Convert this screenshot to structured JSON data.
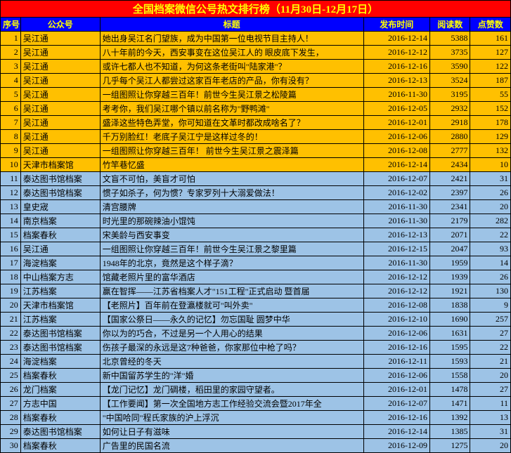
{
  "title": "全国档案微信公号热文排行榜（11月30日-12月17日）",
  "columns": [
    "序号",
    "公众号",
    "标题",
    "发布时间",
    "阅读数",
    "点赞数"
  ],
  "colors": {
    "titleBg": "#ff0000",
    "titleFg": "#ffff00",
    "headerBg": "#0000ff",
    "headerFg": "#ffff00",
    "orange": "#ffc000",
    "blue": "#9dc3e6",
    "border": "#000000"
  },
  "rows": [
    {
      "n": 1,
      "acct": "吴江通",
      "title": "她出身吴江名门望族，成为中国第一位电视节目主持人！",
      "date": "2016-12-14",
      "read": 5388,
      "like": 161,
      "bg": "orange"
    },
    {
      "n": 2,
      "acct": "吴江通",
      "title": "八十年前的今天，西安事变在这位吴江人的  眼皮底下发生，",
      "date": "2016-12-12",
      "read": 3735,
      "like": 127,
      "bg": "orange"
    },
    {
      "n": 3,
      "acct": "吴江通",
      "title": "或许七都人也不知道，为何这条老街叫\"陆家港\"？",
      "date": "2016-12-16",
      "read": 3590,
      "like": 122,
      "bg": "orange"
    },
    {
      "n": 4,
      "acct": "吴江通",
      "title": "几乎每个吴江人都尝过这家百年老店的产品，你有没有？",
      "date": "2016-12-13",
      "read": 3524,
      "like": 187,
      "bg": "orange"
    },
    {
      "n": 5,
      "acct": "吴江通",
      "title": "一组图照让你穿越三百年！前世今生吴江景之松陵篇",
      "date": "2016-11-30",
      "read": 3195,
      "like": 55,
      "bg": "orange"
    },
    {
      "n": 6,
      "acct": "吴江通",
      "title": "考考你，我们吴江哪个镇以前名称为\"野鸭滩\"",
      "date": "2016-12-05",
      "read": 2932,
      "like": 152,
      "bg": "orange"
    },
    {
      "n": 7,
      "acct": "吴江通",
      "title": "盛泽这些特色弄堂，你可知道在文革时都改成啥名了？",
      "date": "2016-12-01",
      "read": 2918,
      "like": 178,
      "bg": "orange"
    },
    {
      "n": 8,
      "acct": "吴江通",
      "title": "千万别脸红！老底子吴江宁是这样过冬的！",
      "date": "2016-12-06",
      "read": 2880,
      "like": 129,
      "bg": "orange"
    },
    {
      "n": 9,
      "acct": "吴江通",
      "title": "一组图照让你穿越三百年！  前世今生吴江景之震泽篇",
      "date": "2016-12-08",
      "read": 2777,
      "like": 132,
      "bg": "orange"
    },
    {
      "n": 10,
      "acct": "天津市档案馆",
      "title": "竹竿巷忆盛",
      "date": "2016-12-14",
      "read": 2434,
      "like": 10,
      "bg": "orange"
    },
    {
      "n": 11,
      "acct": "泰达图书馆档案",
      "title": "文盲不可怕，美盲才可怕",
      "date": "2016-12-07",
      "read": 2421,
      "like": 31,
      "bg": "blue"
    },
    {
      "n": 12,
      "acct": "泰达图书馆档案",
      "title": "惯子如杀子，何为惯？专家罗列十大溺爱做法！",
      "date": "2016-12-02",
      "read": 2397,
      "like": 26,
      "bg": "blue"
    },
    {
      "n": 13,
      "acct": "皇史宬",
      "title": "清宫腰牌",
      "date": "2016-11-30",
      "read": 2341,
      "like": 20,
      "bg": "blue"
    },
    {
      "n": 14,
      "acct": "南京档案",
      "title": "时光里的那碗辣油小馄饨",
      "date": "2016-11-30",
      "read": 2179,
      "like": 282,
      "bg": "blue"
    },
    {
      "n": 15,
      "acct": "档案春秋",
      "title": "宋美龄与西安事变",
      "date": "2016-12-13",
      "read": 2071,
      "like": 22,
      "bg": "blue"
    },
    {
      "n": 16,
      "acct": "吴江通",
      "title": "一组图照让你穿越三百年！前世今生吴江景之黎里篇",
      "date": "2016-12-15",
      "read": 2047,
      "like": 93,
      "bg": "blue"
    },
    {
      "n": 17,
      "acct": "海淀档案",
      "title": "1948年的北京，竟然是这个样子滴？",
      "date": "2016-11-30",
      "read": 1959,
      "like": 14,
      "bg": "blue"
    },
    {
      "n": 18,
      "acct": "中山档案方志",
      "title": "馆藏老照片里的富华酒店",
      "date": "2016-12-12",
      "read": 1939,
      "like": 26,
      "bg": "blue"
    },
    {
      "n": 19,
      "acct": "江苏档案",
      "title": "赢在智挥——江苏省档案人才\"151工程\"正式启动  暨首届",
      "date": "2016-12-12",
      "read": 1921,
      "like": 130,
      "bg": "blue"
    },
    {
      "n": 20,
      "acct": "天津市档案馆",
      "title": "【老照片】百年前在登瀛楼就可\"叫外卖\"",
      "date": "2016-12-08",
      "read": 1838,
      "like": 9,
      "bg": "blue"
    },
    {
      "n": 21,
      "acct": "江苏档案",
      "title": "【国家公祭日——永久的记忆】勿忘国耻  圆梦中华",
      "date": "2016-12-10",
      "read": 1690,
      "like": 257,
      "bg": "blue"
    },
    {
      "n": 22,
      "acct": "泰达图书馆档案",
      "title": "你以为的巧合，不过是另一个人用心的结果",
      "date": "2016-12-06",
      "read": 1631,
      "like": 27,
      "bg": "blue"
    },
    {
      "n": 23,
      "acct": "泰达图书馆档案",
      "title": "伤孩子最深的永远是这7种爸爸，你家那位中枪了吗？",
      "date": "2016-12-16",
      "read": 1595,
      "like": 22,
      "bg": "blue"
    },
    {
      "n": 24,
      "acct": "海淀档案",
      "title": "北京曾经的冬天",
      "date": "2016-12-11",
      "read": 1593,
      "like": 21,
      "bg": "blue"
    },
    {
      "n": 25,
      "acct": "档案春秋",
      "title": "新中国留苏学生的\"洋\"婚",
      "date": "2016-12-06",
      "read": 1558,
      "like": 20,
      "bg": "blue"
    },
    {
      "n": 26,
      "acct": "龙门档案",
      "title": "【龙门记忆】龙门碉楼，稻田里的家园守望者。",
      "date": "2016-12-01",
      "read": 1478,
      "like": 27,
      "bg": "blue"
    },
    {
      "n": 27,
      "acct": "方志中国",
      "title": "【工作要闻】第一次全国地方志工作经验交流会暨2017年全",
      "date": "2016-12-07",
      "read": 1471,
      "like": 11,
      "bg": "blue"
    },
    {
      "n": 28,
      "acct": "档案春秋",
      "title": "\"中国哈同\"程氏家族的沪上浮沉",
      "date": "2016-12-16",
      "read": 1392,
      "like": 13,
      "bg": "blue"
    },
    {
      "n": 29,
      "acct": "泰达图书馆档案",
      "title": "如何让日子有滋味",
      "date": "2016-12-14",
      "read": 1385,
      "like": 31,
      "bg": "blue"
    },
    {
      "n": 30,
      "acct": "档案春秋",
      "title": "广告里的民国名流",
      "date": "2016-12-09",
      "read": 1275,
      "like": 20,
      "bg": "blue"
    }
  ]
}
